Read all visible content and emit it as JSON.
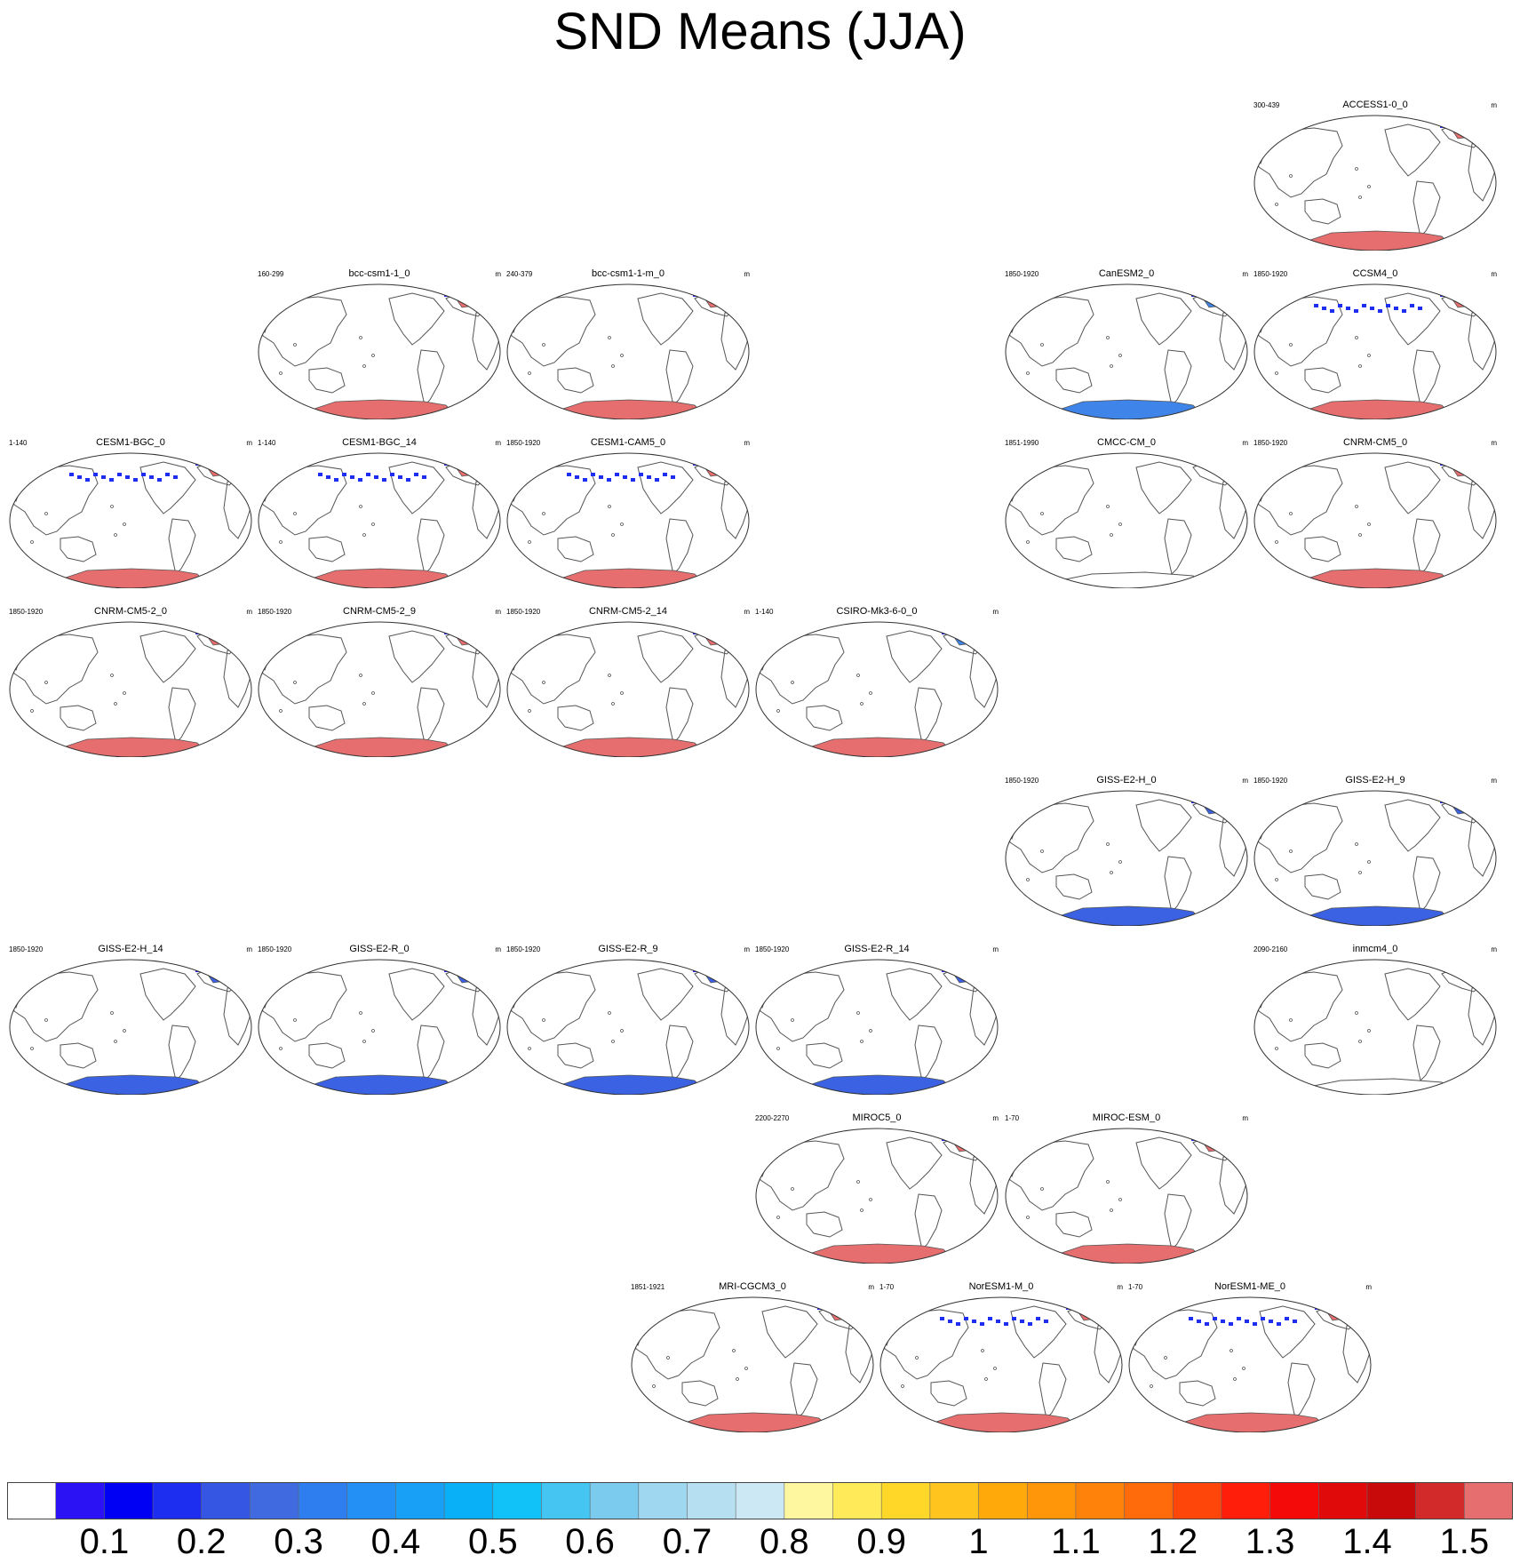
{
  "title": "SND Means (JJA)",
  "chart_data": {
    "type": "heatmap",
    "title": "SND Means (JJA)",
    "map_projection": "robinson-like, Pacific-centered",
    "colorbar": {
      "labels": [
        "0.1",
        "0.2",
        "0.3",
        "0.4",
        "0.5",
        "0.6",
        "0.7",
        "0.8",
        "0.9",
        "1",
        "1.1",
        "1.2",
        "1.3",
        "1.4",
        "1.5"
      ],
      "colors": [
        "#ffffff",
        "#2a12f5",
        "#0000f5",
        "#1e2ef0",
        "#3456e3",
        "#3f6ae0",
        "#2f7ef0",
        "#2390f5",
        "#18a0f7",
        "#0ab0f7",
        "#10c2f7",
        "#45c6f2",
        "#7acbee",
        "#9fd6f0",
        "#b6dff2",
        "#cce8f5",
        "#fff7a0",
        "#ffeb5a",
        "#ffd728",
        "#ffc41e",
        "#ffaa0a",
        "#ff960a",
        "#ff820a",
        "#ff6a0a",
        "#ff460a",
        "#ff1e0a",
        "#f50a0a",
        "#e10a0a",
        "#c80a0a",
        "#d22a2a",
        "#e66e6e"
      ]
    },
    "panels": [
      {
        "name": "ACCESS1-0_0",
        "range": "300-439",
        "unit": "m",
        "antarctic": "#e66e6e",
        "arctic": "#e66e6e",
        "hasArctic": true,
        "hasAntarctic": true,
        "highlight": false
      },
      {
        "name": "bcc-csm1-1_0",
        "range": "160-299",
        "unit": "m",
        "antarctic": "#e66e6e",
        "arctic": "#e66e6e",
        "hasArctic": true,
        "hasAntarctic": true,
        "highlight": false
      },
      {
        "name": "bcc-csm1-1-m_0",
        "range": "240-379",
        "unit": "m",
        "antarctic": "#e66e6e",
        "arctic": "#e66e6e",
        "hasArctic": true,
        "hasAntarctic": true,
        "highlight": false
      },
      {
        "name": "CanESM2_0",
        "range": "1850-1920",
        "unit": "m",
        "antarctic": "#3f84e8",
        "arctic": "#3f84e8",
        "hasArctic": true,
        "hasAntarctic": true,
        "highlight": false
      },
      {
        "name": "CCSM4_0",
        "range": "1850-1920",
        "unit": "m",
        "antarctic": "#e66e6e",
        "arctic": "#e66e6e",
        "hasArctic": true,
        "hasAntarctic": true,
        "highlight": true
      },
      {
        "name": "CESM1-BGC_0",
        "range": "1-140",
        "unit": "m",
        "antarctic": "#e66e6e",
        "arctic": "#e66e6e",
        "hasArctic": true,
        "hasAntarctic": true,
        "highlight": true
      },
      {
        "name": "CESM1-BGC_14",
        "range": "1-140",
        "unit": "m",
        "antarctic": "#e66e6e",
        "arctic": "#e66e6e",
        "hasArctic": true,
        "hasAntarctic": true,
        "highlight": true
      },
      {
        "name": "CESM1-CAM5_0",
        "range": "1850-1920",
        "unit": "m",
        "antarctic": "#e66e6e",
        "arctic": "#e66e6e",
        "hasArctic": true,
        "hasAntarctic": true,
        "highlight": true
      },
      {
        "name": "CMCC-CM_0",
        "range": "1851-1990",
        "unit": "m",
        "antarctic": "none",
        "arctic": "none",
        "hasArctic": false,
        "hasAntarctic": false,
        "highlight": false
      },
      {
        "name": "CNRM-CM5_0",
        "range": "1850-1920",
        "unit": "m",
        "antarctic": "#e66e6e",
        "arctic": "#e66e6e",
        "hasArctic": true,
        "hasAntarctic": true,
        "highlight": false
      },
      {
        "name": "CNRM-CM5-2_0",
        "range": "1850-1920",
        "unit": "m",
        "antarctic": "#e66e6e",
        "arctic": "#e66e6e",
        "hasArctic": true,
        "hasAntarctic": true,
        "highlight": false
      },
      {
        "name": "CNRM-CM5-2_9",
        "range": "1850-1920",
        "unit": "m",
        "antarctic": "#e66e6e",
        "arctic": "#e66e6e",
        "hasArctic": true,
        "hasAntarctic": true,
        "highlight": false
      },
      {
        "name": "CNRM-CM5-2_14",
        "range": "1850-1920",
        "unit": "m",
        "antarctic": "#e66e6e",
        "arctic": "#e66e6e",
        "hasArctic": true,
        "hasAntarctic": true,
        "highlight": false
      },
      {
        "name": "CSIRO-Mk3-6-0_0",
        "range": "1-140",
        "unit": "m",
        "antarctic": "#e66e6e",
        "arctic": "#3f84e8",
        "hasArctic": true,
        "hasAntarctic": true,
        "highlight": false
      },
      {
        "name": "GISS-E2-H_0",
        "range": "1850-1920",
        "unit": "m",
        "antarctic": "#3a62e3",
        "arctic": "#3a62e3",
        "hasArctic": true,
        "hasAntarctic": true,
        "highlight": false
      },
      {
        "name": "GISS-E2-H_9",
        "range": "1850-1920",
        "unit": "m",
        "antarctic": "#3a62e3",
        "arctic": "#3a62e3",
        "hasArctic": true,
        "hasAntarctic": true,
        "highlight": false
      },
      {
        "name": "GISS-E2-H_14",
        "range": "1850-1920",
        "unit": "m",
        "antarctic": "#3a62e3",
        "arctic": "#3a62e3",
        "hasArctic": true,
        "hasAntarctic": true,
        "highlight": false
      },
      {
        "name": "GISS-E2-R_0",
        "range": "1850-1920",
        "unit": "m",
        "antarctic": "#3a62e3",
        "arctic": "#3a62e3",
        "hasArctic": true,
        "hasAntarctic": true,
        "highlight": false
      },
      {
        "name": "GISS-E2-R_9",
        "range": "1850-1920",
        "unit": "m",
        "antarctic": "#3a62e3",
        "arctic": "#3a62e3",
        "hasArctic": true,
        "hasAntarctic": true,
        "highlight": false
      },
      {
        "name": "GISS-E2-R_14",
        "range": "1850-1920",
        "unit": "m",
        "antarctic": "#3a62e3",
        "arctic": "#3a62e3",
        "hasArctic": true,
        "hasAntarctic": true,
        "highlight": false
      },
      {
        "name": "inmcm4_0",
        "range": "2090-2160",
        "unit": "m",
        "antarctic": "none",
        "arctic": "none",
        "hasArctic": false,
        "hasAntarctic": false,
        "highlight": false
      },
      {
        "name": "MIROC5_0",
        "range": "2200-2270",
        "unit": "m",
        "antarctic": "#e66e6e",
        "arctic": "#e66e6e",
        "hasArctic": true,
        "hasAntarctic": true,
        "highlight": false
      },
      {
        "name": "MIROC-ESM_0",
        "range": "1-70",
        "unit": "m",
        "antarctic": "#e66e6e",
        "arctic": "#e66e6e",
        "hasArctic": true,
        "hasAntarctic": true,
        "highlight": false
      },
      {
        "name": "MRI-CGCM3_0",
        "range": "1851-1921",
        "unit": "m",
        "antarctic": "#e66e6e",
        "arctic": "#e66e6e",
        "hasArctic": true,
        "hasAntarctic": true,
        "highlight": false
      },
      {
        "name": "NorESM1-M_0",
        "range": "1-70",
        "unit": "m",
        "antarctic": "#e66e6e",
        "arctic": "#e66e6e",
        "hasArctic": true,
        "hasAntarctic": true,
        "highlight": true
      },
      {
        "name": "NorESM1-ME_0",
        "range": "1-70",
        "unit": "m",
        "antarctic": "#e66e6e",
        "arctic": "#e66e6e",
        "hasArctic": true,
        "hasAntarctic": true,
        "highlight": true
      }
    ]
  }
}
